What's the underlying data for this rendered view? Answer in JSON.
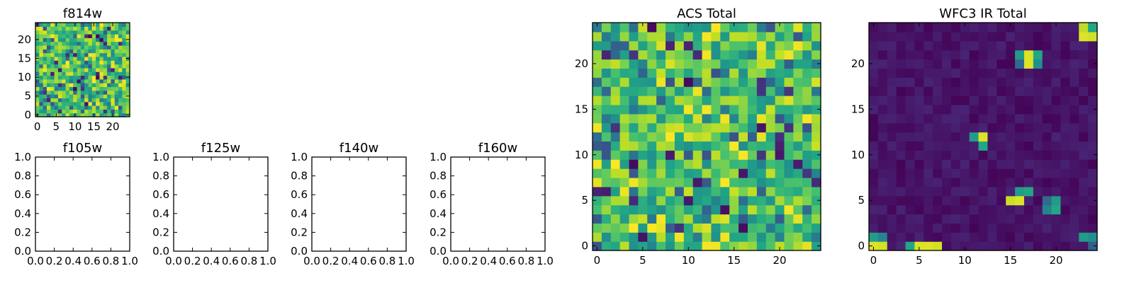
{
  "chart_data": [
    {
      "type": "heatmap",
      "title": "f814w",
      "grid_size": [
        25,
        25
      ],
      "xlim": [
        -0.5,
        24.5
      ],
      "ylim": [
        -0.5,
        24.5
      ],
      "xticks": [
        0,
        5,
        10,
        15,
        20
      ],
      "yticks": [
        0,
        5,
        10,
        15,
        20
      ],
      "xticklabels": [
        "0",
        "5",
        "10",
        "15",
        "20"
      ],
      "yticklabels": [
        "0",
        "5",
        "10",
        "15",
        "20"
      ],
      "colormap": "viridis",
      "value_range": [
        0,
        1
      ],
      "pattern": "noise_high",
      "seed": 11,
      "grid": false
    },
    {
      "type": "heatmap",
      "title": "f105w",
      "empty": true,
      "xlim": [
        0,
        1
      ],
      "ylim": [
        0,
        1
      ],
      "xticks": [
        0,
        0.2,
        0.4,
        0.6,
        0.8,
        1.0
      ],
      "yticks": [
        0,
        0.2,
        0.4,
        0.6,
        0.8,
        1.0
      ],
      "xticklabels": [
        "0.0",
        "0.2",
        "0.4",
        "0.6",
        "0.8",
        "1.0"
      ],
      "yticklabels": [
        "0.0",
        "0.2",
        "0.4",
        "0.6",
        "0.8",
        "1.0"
      ],
      "grid": false
    },
    {
      "type": "heatmap",
      "title": "f125w",
      "empty": true,
      "xlim": [
        0,
        1
      ],
      "ylim": [
        0,
        1
      ],
      "xticks": [
        0,
        0.2,
        0.4,
        0.6,
        0.8,
        1.0
      ],
      "yticks": [
        0,
        0.2,
        0.4,
        0.6,
        0.8,
        1.0
      ],
      "xticklabels": [
        "0.0",
        "0.2",
        "0.4",
        "0.6",
        "0.8",
        "1.0"
      ],
      "yticklabels": [
        "0.0",
        "0.2",
        "0.4",
        "0.6",
        "0.8",
        "1.0"
      ],
      "grid": false
    },
    {
      "type": "heatmap",
      "title": "f140w",
      "empty": true,
      "xlim": [
        0,
        1
      ],
      "ylim": [
        0,
        1
      ],
      "xticks": [
        0,
        0.2,
        0.4,
        0.6,
        0.8,
        1.0
      ],
      "yticks": [
        0,
        0.2,
        0.4,
        0.6,
        0.8,
        1.0
      ],
      "xticklabels": [
        "0.0",
        "0.2",
        "0.4",
        "0.6",
        "0.8",
        "1.0"
      ],
      "yticklabels": [
        "0.0",
        "0.2",
        "0.4",
        "0.6",
        "0.8",
        "1.0"
      ],
      "grid": false
    },
    {
      "type": "heatmap",
      "title": "f160w",
      "empty": true,
      "xlim": [
        0,
        1
      ],
      "ylim": [
        0,
        1
      ],
      "xticks": [
        0,
        0.2,
        0.4,
        0.6,
        0.8,
        1.0
      ],
      "yticks": [
        0,
        0.2,
        0.4,
        0.6,
        0.8,
        1.0
      ],
      "xticklabels": [
        "0.0",
        "0.2",
        "0.4",
        "0.6",
        "0.8",
        "1.0"
      ],
      "yticklabels": [
        "0.0",
        "0.2",
        "0.4",
        "0.6",
        "0.8",
        "1.0"
      ],
      "grid": false
    },
    {
      "type": "heatmap",
      "title": "ACS Total",
      "grid_size": [
        25,
        25
      ],
      "xlim": [
        -0.5,
        24.5
      ],
      "ylim": [
        -0.5,
        24.5
      ],
      "xticks": [
        0,
        5,
        10,
        15,
        20
      ],
      "yticks": [
        0,
        5,
        10,
        15,
        20
      ],
      "xticklabels": [
        "0",
        "5",
        "10",
        "15",
        "20"
      ],
      "yticklabels": [
        "0",
        "5",
        "10",
        "15",
        "20"
      ],
      "colormap": "viridis",
      "value_range": [
        0,
        1
      ],
      "pattern": "noise_high",
      "seed": 23,
      "grid": false
    },
    {
      "type": "heatmap",
      "title": "WFC3 IR Total",
      "grid_size": [
        25,
        25
      ],
      "xlim": [
        -0.5,
        24.5
      ],
      "ylim": [
        -0.5,
        24.5
      ],
      "xticks": [
        0,
        5,
        10,
        15,
        20
      ],
      "yticks": [
        0,
        5,
        10,
        15,
        20
      ],
      "xticklabels": [
        "0",
        "5",
        "10",
        "15",
        "20"
      ],
      "yticklabels": [
        "0",
        "5",
        "10",
        "15",
        "20"
      ],
      "colormap": "viridis",
      "value_range": [
        0,
        1
      ],
      "pattern": "noise_low",
      "seed": 37,
      "background_level": 0.05,
      "hotspots": [
        {
          "x": 0,
          "y": 0,
          "v": 0.95
        },
        {
          "x": 1,
          "y": 0,
          "v": 0.93
        },
        {
          "x": 0,
          "y": 1,
          "v": 0.55
        },
        {
          "x": 1,
          "y": 1,
          "v": 0.45
        },
        {
          "x": 4,
          "y": 0,
          "v": 0.6
        },
        {
          "x": 5,
          "y": 0,
          "v": 0.95
        },
        {
          "x": 6,
          "y": 0,
          "v": 0.95
        },
        {
          "x": 7,
          "y": 0,
          "v": 0.93
        },
        {
          "x": 15,
          "y": 5,
          "v": 0.92
        },
        {
          "x": 16,
          "y": 5,
          "v": 0.95
        },
        {
          "x": 16,
          "y": 6,
          "v": 0.55
        },
        {
          "x": 17,
          "y": 6,
          "v": 0.6
        },
        {
          "x": 19,
          "y": 5,
          "v": 0.35
        },
        {
          "x": 20,
          "y": 5,
          "v": 0.55
        },
        {
          "x": 19,
          "y": 4,
          "v": 0.45
        },
        {
          "x": 20,
          "y": 4,
          "v": 0.6
        },
        {
          "x": 11,
          "y": 12,
          "v": 0.55
        },
        {
          "x": 12,
          "y": 12,
          "v": 0.95
        },
        {
          "x": 12,
          "y": 11,
          "v": 0.6
        },
        {
          "x": 16,
          "y": 21,
          "v": 0.55
        },
        {
          "x": 17,
          "y": 21,
          "v": 0.95
        },
        {
          "x": 18,
          "y": 21,
          "v": 0.6
        },
        {
          "x": 16,
          "y": 20,
          "v": 0.35
        },
        {
          "x": 17,
          "y": 20,
          "v": 0.95
        },
        {
          "x": 18,
          "y": 20,
          "v": 0.5
        },
        {
          "x": 23,
          "y": 24,
          "v": 0.9
        },
        {
          "x": 24,
          "y": 24,
          "v": 0.6
        },
        {
          "x": 23,
          "y": 23,
          "v": 0.95
        },
        {
          "x": 24,
          "y": 23,
          "v": 0.93
        },
        {
          "x": 23,
          "y": 1,
          "v": 0.55
        },
        {
          "x": 24,
          "y": 1,
          "v": 0.5
        },
        {
          "x": 24,
          "y": 0,
          "v": 0.3
        }
      ],
      "grid": false
    }
  ]
}
